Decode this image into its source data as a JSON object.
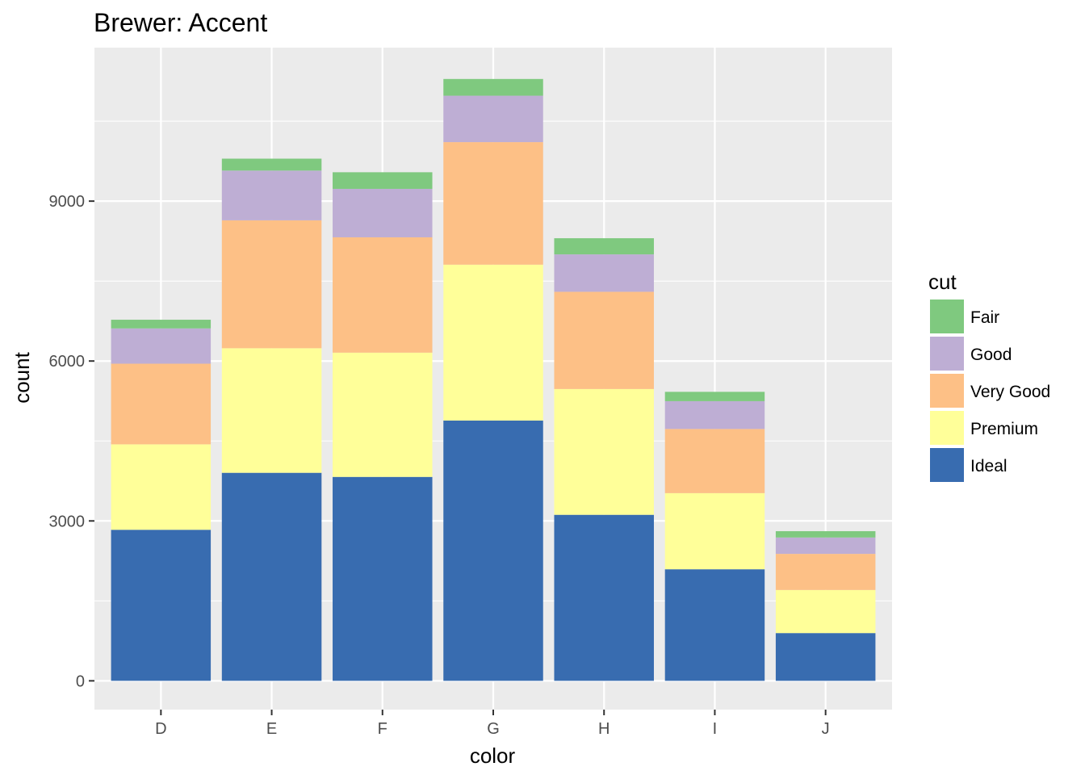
{
  "chart_data": {
    "type": "bar",
    "stacked": true,
    "title": "Brewer: Accent",
    "xlabel": "color",
    "ylabel": "count",
    "categories": [
      "D",
      "E",
      "F",
      "G",
      "H",
      "I",
      "J"
    ],
    "ylim": [
      -540,
      11880
    ],
    "yticks": [
      0,
      3000,
      6000,
      9000
    ],
    "ytick_labels": [
      "0",
      "3000",
      "6000",
      "9000"
    ],
    "grid": true,
    "legend": {
      "title": "cut",
      "position": "right"
    },
    "series": [
      {
        "name": "Ideal",
        "color": "#386CB0",
        "values": [
          2834,
          3903,
          3826,
          4884,
          3115,
          2093,
          896
        ]
      },
      {
        "name": "Premium",
        "color": "#FFFF99",
        "values": [
          1603,
          2337,
          2331,
          2924,
          2360,
          1428,
          808
        ]
      },
      {
        "name": "Very Good",
        "color": "#FDC086",
        "values": [
          1513,
          2400,
          2164,
          2299,
          1824,
          1204,
          678
        ]
      },
      {
        "name": "Good",
        "color": "#BEAED4",
        "values": [
          662,
          933,
          909,
          871,
          702,
          522,
          307
        ]
      },
      {
        "name": "Fair",
        "color": "#7FC97F",
        "values": [
          163,
          224,
          312,
          314,
          303,
          175,
          119
        ]
      }
    ]
  }
}
